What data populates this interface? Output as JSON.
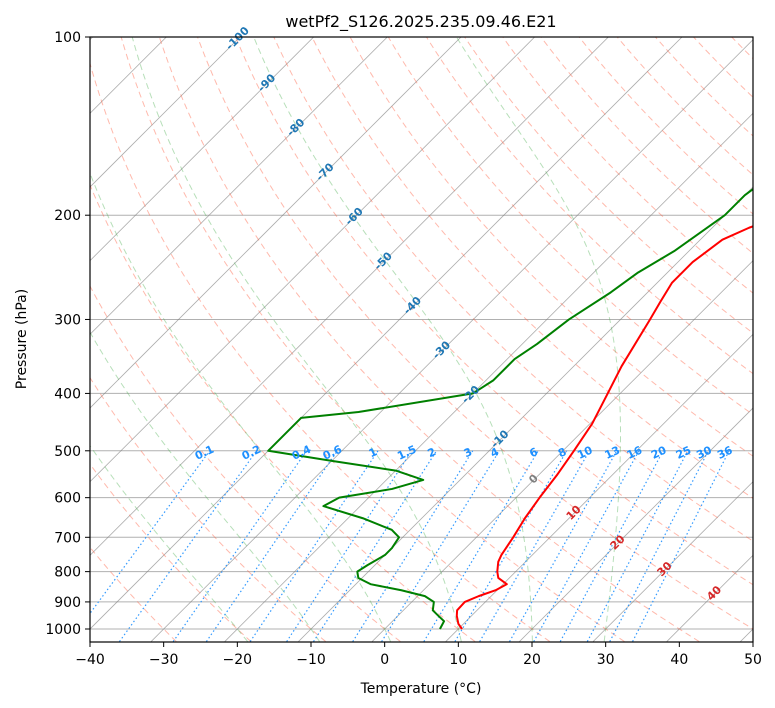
{
  "chart_data": {
    "type": "line",
    "title": "wetPf2_S126.2025.235.09.46.E21",
    "xlabel": "Temperature (°C)",
    "ylabel": "Pressure (hPa)",
    "xlim": [
      -40,
      50
    ],
    "ylim": [
      1050,
      100
    ],
    "y_scale": "log",
    "grid": true,
    "x_ticks": [
      -40,
      -30,
      -20,
      -10,
      0,
      10,
      20,
      30,
      40,
      50
    ],
    "x_tick_labels": [
      "−40",
      "−30",
      "−20",
      "−10",
      "0",
      "10",
      "20",
      "30",
      "40",
      "50"
    ],
    "y_ticks": [
      1000,
      900,
      800,
      700,
      600,
      500,
      400,
      300,
      200,
      100
    ],
    "y_tick_labels": [
      "1000",
      "900",
      "800",
      "700",
      "600",
      "500",
      "400",
      "300",
      "200",
      "100"
    ],
    "series": [
      {
        "color": "#ff0000",
        "points": [
          [
            1000,
            10.5
          ],
          [
            980,
            9.3
          ],
          [
            950,
            8.0
          ],
          [
            930,
            7.3
          ],
          [
            900,
            7.2
          ],
          [
            880,
            8.3
          ],
          [
            860,
            9.8
          ],
          [
            840,
            10.5
          ],
          [
            820,
            8.5
          ],
          [
            800,
            7.5
          ],
          [
            770,
            6.3
          ],
          [
            750,
            5.8
          ],
          [
            700,
            5.0
          ],
          [
            650,
            4.0
          ],
          [
            600,
            3.2
          ],
          [
            550,
            2.5
          ],
          [
            500,
            1.5
          ],
          [
            450,
            0.3
          ],
          [
            400,
            -1.7
          ],
          [
            360,
            -3.5
          ],
          [
            300,
            -6.0
          ],
          [
            280,
            -7.0
          ],
          [
            260,
            -8.0
          ],
          [
            240,
            -8.0
          ],
          [
            220,
            -7.0
          ],
          [
            210,
            -5.0
          ],
          [
            200,
            -2.0
          ],
          [
            185,
            2.0
          ],
          [
            160,
            6.0
          ],
          [
            140,
            10.0
          ],
          [
            120,
            13.5
          ],
          [
            100,
            16.0
          ]
        ]
      },
      {
        "color": "#008000",
        "points": [
          [
            1000,
            7.5
          ],
          [
            970,
            7.0
          ],
          [
            950,
            5.5
          ],
          [
            930,
            4.0
          ],
          [
            900,
            3.0
          ],
          [
            880,
            1.0
          ],
          [
            860,
            -3.0
          ],
          [
            840,
            -8.0
          ],
          [
            820,
            -10.5
          ],
          [
            800,
            -11.5
          ],
          [
            780,
            -11.0
          ],
          [
            750,
            -10.0
          ],
          [
            730,
            -10.0
          ],
          [
            700,
            -10.5
          ],
          [
            680,
            -12.5
          ],
          [
            650,
            -18.0
          ],
          [
            620,
            -25.0
          ],
          [
            600,
            -24.0
          ],
          [
            580,
            -18.0
          ],
          [
            560,
            -15.0
          ],
          [
            540,
            -20.0
          ],
          [
            520,
            -30.0
          ],
          [
            500,
            -40.0
          ],
          [
            440,
            -40.0
          ],
          [
            430,
            -33.0
          ],
          [
            400,
            -20.0
          ],
          [
            380,
            -19.0
          ],
          [
            350,
            -19.0
          ],
          [
            330,
            -18.0
          ],
          [
            300,
            -17.0
          ],
          [
            270,
            -15.0
          ],
          [
            250,
            -14.0
          ],
          [
            230,
            -12.0
          ],
          [
            200,
            -10.0
          ],
          [
            185,
            -10.0
          ],
          [
            170,
            -9.0
          ],
          [
            150,
            -7.0
          ],
          [
            130,
            -4.0
          ],
          [
            110,
            -2.0
          ],
          [
            100,
            0.0
          ]
        ]
      }
    ],
    "isotherm_color": "#808080",
    "dry_adiabats": {
      "color": "#ff6347",
      "theta_values": [
        -30,
        -20,
        -10,
        0,
        10,
        20,
        30,
        40,
        50,
        60,
        70,
        80,
        90,
        100,
        110,
        120,
        130,
        140,
        150,
        160,
        170,
        180,
        190,
        200
      ]
    },
    "moist_adiabats": {
      "color": "#4caf50",
      "thetaw_values": [
        -20,
        -10,
        0,
        10,
        20,
        30
      ]
    },
    "mixing_ratio_lines": {
      "color": "#1e90ff",
      "values": [
        "0.1",
        "0.2",
        "0.4",
        "0.6",
        "1",
        "1.5",
        "2",
        "3",
        "4",
        "6",
        "8",
        "10",
        "13",
        "16",
        "20",
        "25",
        "30",
        "36"
      ],
      "numeric": [
        0.1,
        0.2,
        0.4,
        0.6,
        1,
        1.5,
        2,
        3,
        4,
        6,
        8,
        10,
        13,
        16,
        20,
        25,
        30,
        36
      ]
    },
    "label_groups": [
      {
        "color": "#1f77b4",
        "labels": [
          "-100",
          "-90",
          "-80",
          "-70",
          "-60",
          "-50",
          "-40",
          "-30",
          "-20",
          "-10"
        ],
        "values": [
          -100,
          -90,
          -80,
          -70,
          -60,
          -50,
          -40,
          -30,
          -20,
          -10
        ]
      },
      {
        "color": "#808080",
        "labels": [
          "0"
        ],
        "values": [
          0
        ]
      },
      {
        "color": "#d62728",
        "labels": [
          "10",
          "20",
          "30",
          "40"
        ],
        "values": [
          10,
          20,
          30,
          40
        ]
      }
    ]
  }
}
